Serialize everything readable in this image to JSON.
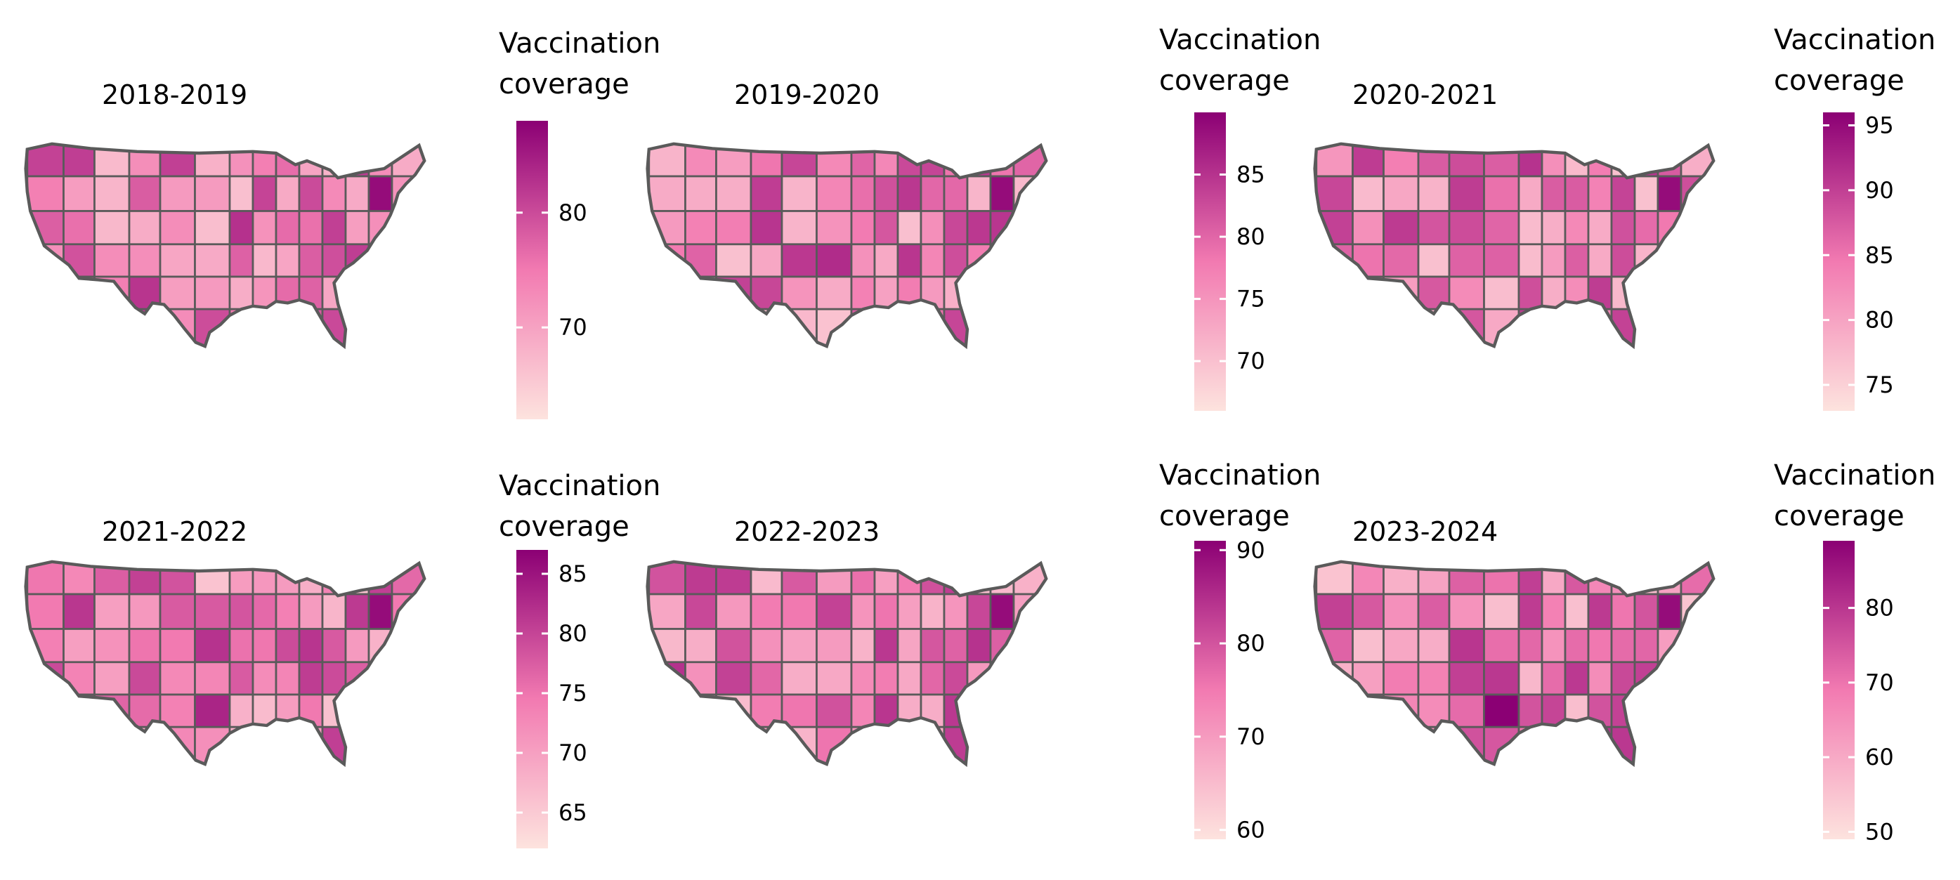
{
  "figure": {
    "legend_title_line1": "Vaccination",
    "legend_title_line2": "coverage",
    "colors": {
      "low": "#fde3de",
      "mid": "#f27ab1",
      "high": "#8b0074",
      "border": "#5a5a5a",
      "background": "#ffffff"
    }
  },
  "panels": [
    {
      "title": "2018-2019",
      "scale": {
        "min": 62,
        "max": 88,
        "ticks": [
          70,
          80
        ]
      }
    },
    {
      "title": "2019-2020",
      "scale": {
        "min": 66,
        "max": 90,
        "ticks": [
          70,
          75,
          80,
          85
        ]
      }
    },
    {
      "title": "2020-2021",
      "scale": {
        "min": 73,
        "max": 96,
        "ticks": [
          75,
          80,
          85,
          90,
          95
        ]
      }
    },
    {
      "title": "2021-2022",
      "scale": {
        "min": 62,
        "max": 87,
        "ticks": [
          65,
          70,
          75,
          80,
          85
        ]
      }
    },
    {
      "title": "2022-2023",
      "scale": {
        "min": 59,
        "max": 91,
        "ticks": [
          60,
          70,
          80,
          90
        ]
      }
    },
    {
      "title": "2023-2024",
      "scale": {
        "min": 49,
        "max": 89,
        "ticks": [
          50,
          60,
          70,
          80
        ]
      }
    }
  ]
}
